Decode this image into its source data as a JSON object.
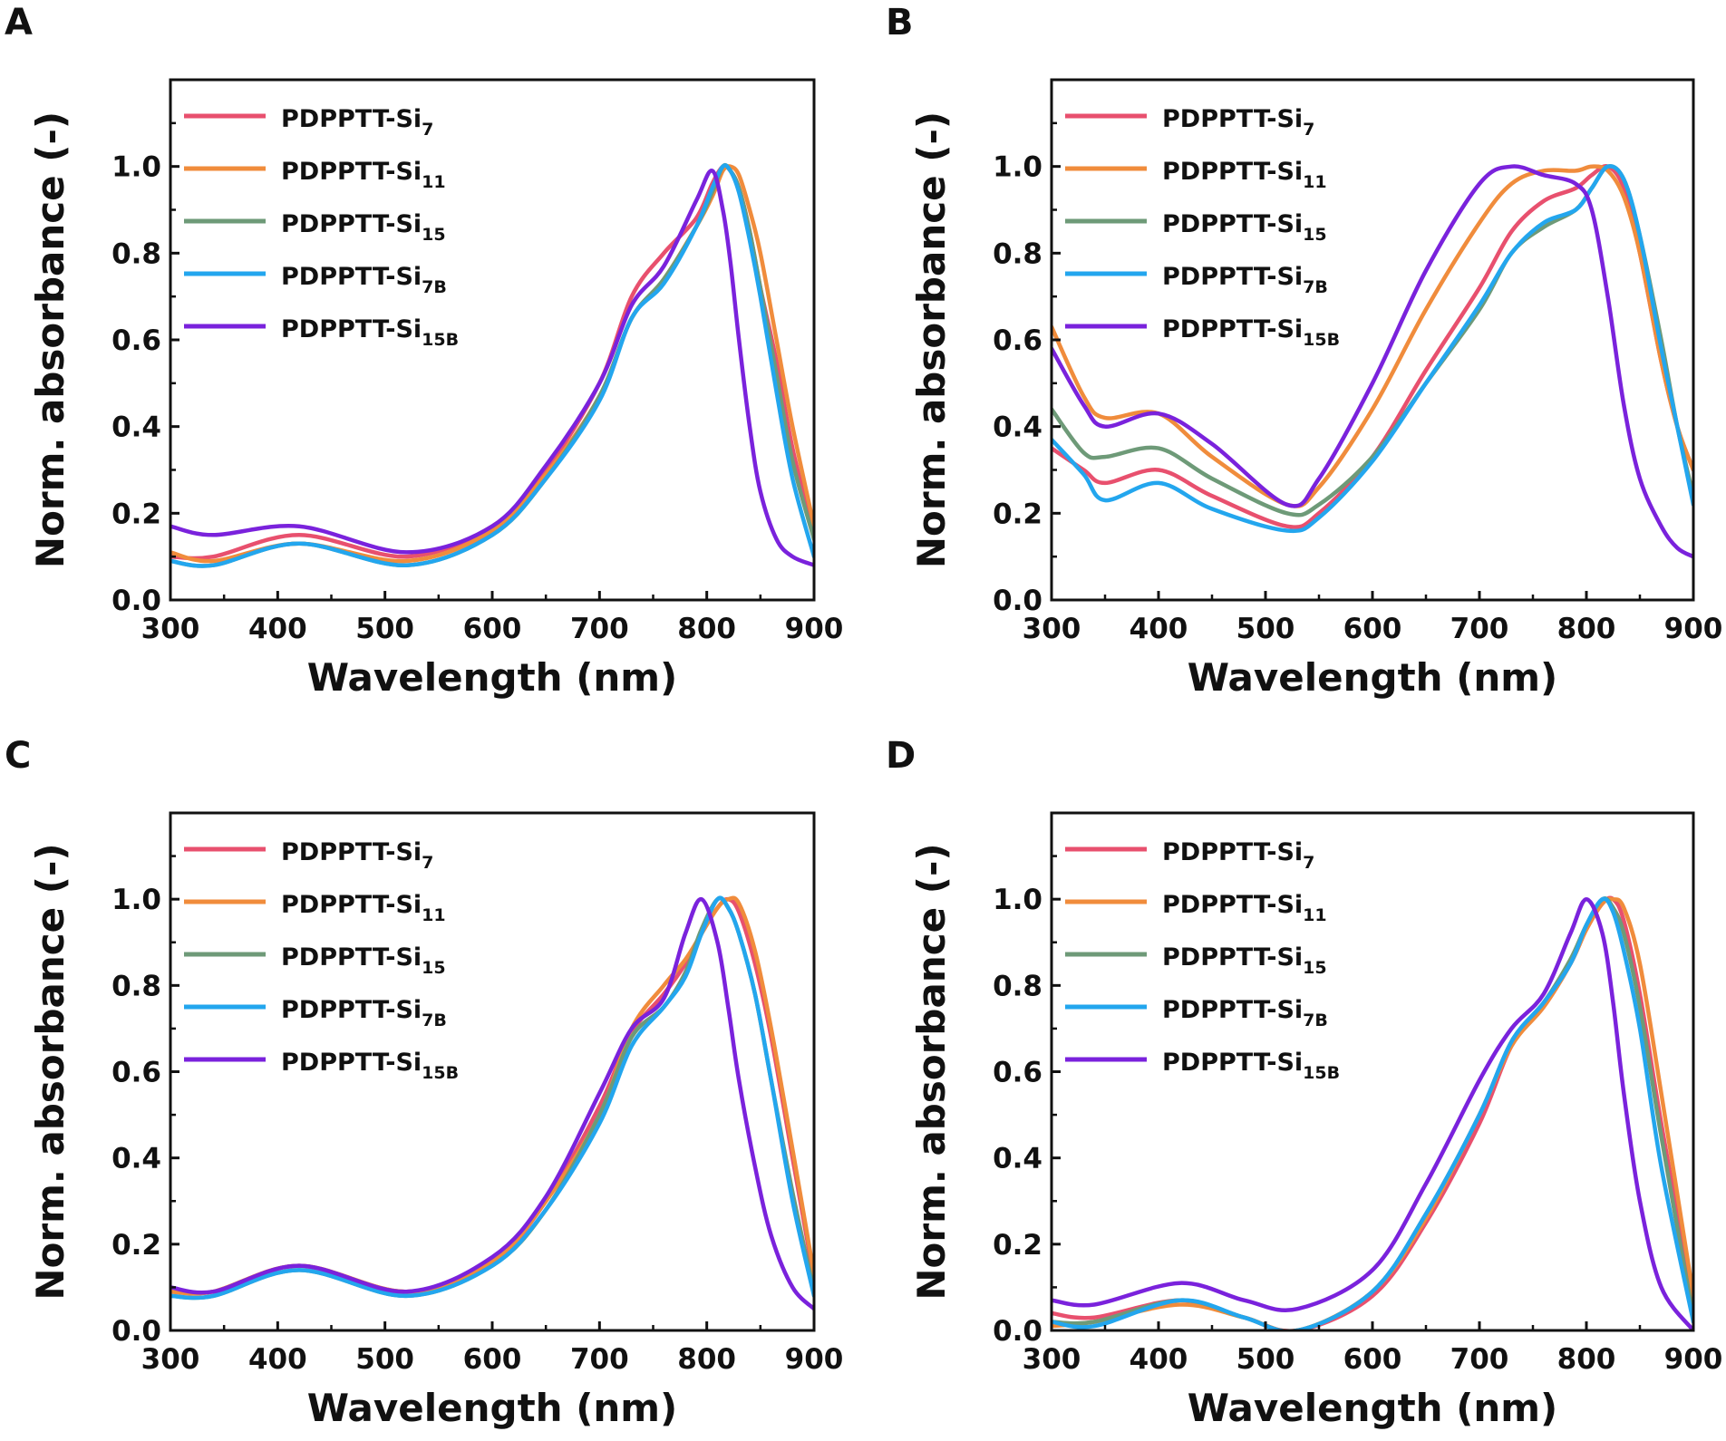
{
  "colors": {
    "Si7": "#e8506e",
    "Si11": "#f08c3c",
    "Si15": "#6e9a78",
    "Si7B": "#23a6ee",
    "Si15B": "#7a22dc"
  },
  "legend": [
    {
      "key": "Si7",
      "prefix": "PDPPTT-Si",
      "sub": "7"
    },
    {
      "key": "Si11",
      "prefix": "PDPPTT-Si",
      "sub": "11"
    },
    {
      "key": "Si15",
      "prefix": "PDPPTT-Si",
      "sub": "15"
    },
    {
      "key": "Si7B",
      "prefix": "PDPPTT-Si",
      "sub": "7B"
    },
    {
      "key": "Si15B",
      "prefix": "PDPPTT-Si",
      "sub": "15B"
    }
  ],
  "chart_data": [
    {
      "panel": "A",
      "type": "line",
      "xlabel": "Wavelength (nm)",
      "ylabel": "Norm. absorbance (-)",
      "xlim": [
        300,
        900
      ],
      "ylim": [
        0,
        1.2
      ],
      "xticks": [
        "300",
        "400",
        "500",
        "600",
        "700",
        "800",
        "900"
      ],
      "yticks": [
        "0.0",
        "0.2",
        "0.4",
        "0.6",
        "0.8",
        "1.0"
      ],
      "legend_position": "top-left",
      "x": [
        300,
        340,
        420,
        520,
        600,
        650,
        700,
        730,
        760,
        790,
        805,
        815,
        822,
        830,
        840,
        850,
        865,
        880,
        900
      ],
      "series": [
        {
          "key": "Si7",
          "name": "PDPPTT-Si7",
          "values": [
            0.1,
            0.1,
            0.15,
            0.1,
            0.17,
            0.3,
            0.5,
            0.7,
            0.8,
            0.88,
            0.96,
            1.0,
            0.99,
            0.95,
            0.85,
            0.72,
            0.55,
            0.35,
            0.15
          ]
        },
        {
          "key": "Si11",
          "name": "PDPPTT-Si11",
          "values": [
            0.11,
            0.09,
            0.13,
            0.09,
            0.16,
            0.29,
            0.47,
            0.65,
            0.74,
            0.86,
            0.93,
            0.99,
            1.0,
            0.98,
            0.9,
            0.8,
            0.6,
            0.4,
            0.17
          ]
        },
        {
          "key": "Si15",
          "name": "PDPPTT-Si15",
          "values": [
            0.09,
            0.08,
            0.13,
            0.08,
            0.15,
            0.28,
            0.47,
            0.65,
            0.74,
            0.86,
            0.94,
            1.0,
            0.99,
            0.95,
            0.85,
            0.72,
            0.52,
            0.32,
            0.14
          ]
        },
        {
          "key": "Si7B",
          "name": "PDPPTT-Si7B",
          "values": [
            0.09,
            0.08,
            0.13,
            0.08,
            0.15,
            0.28,
            0.46,
            0.65,
            0.73,
            0.86,
            0.95,
            1.0,
            0.99,
            0.94,
            0.83,
            0.7,
            0.48,
            0.28,
            0.1
          ]
        },
        {
          "key": "Si15B",
          "name": "PDPPTT-Si15B",
          "values": [
            0.17,
            0.15,
            0.17,
            0.11,
            0.17,
            0.31,
            0.5,
            0.68,
            0.77,
            0.92,
            0.99,
            0.9,
            0.78,
            0.6,
            0.4,
            0.25,
            0.14,
            0.1,
            0.08
          ]
        }
      ]
    },
    {
      "panel": "B",
      "type": "line",
      "xlabel": "Wavelength (nm)",
      "ylabel": "Norm. absorbance (-)",
      "xlim": [
        300,
        900
      ],
      "ylim": [
        0,
        1.2
      ],
      "xticks": [
        "300",
        "400",
        "500",
        "600",
        "700",
        "800",
        "900"
      ],
      "yticks": [
        "0.0",
        "0.2",
        "0.4",
        "0.6",
        "0.8",
        "1.0"
      ],
      "legend_position": "top-left",
      "x": [
        300,
        330,
        350,
        400,
        450,
        520,
        550,
        600,
        650,
        700,
        730,
        760,
        790,
        805,
        820,
        835,
        850,
        870,
        885,
        900
      ],
      "series": [
        {
          "key": "Si7",
          "name": "PDPPTT-Si7",
          "values": [
            0.35,
            0.3,
            0.27,
            0.3,
            0.24,
            0.17,
            0.2,
            0.33,
            0.53,
            0.72,
            0.85,
            0.92,
            0.95,
            0.98,
            1.0,
            0.95,
            0.8,
            0.55,
            0.4,
            0.3
          ]
        },
        {
          "key": "Si11",
          "name": "PDPPTT-Si11",
          "values": [
            0.63,
            0.47,
            0.42,
            0.43,
            0.33,
            0.22,
            0.26,
            0.44,
            0.67,
            0.87,
            0.96,
            0.99,
            0.99,
            1.0,
            0.99,
            0.93,
            0.8,
            0.55,
            0.4,
            0.3
          ]
        },
        {
          "key": "Si15",
          "name": "PDPPTT-Si15",
          "values": [
            0.44,
            0.34,
            0.33,
            0.35,
            0.28,
            0.2,
            0.22,
            0.33,
            0.5,
            0.67,
            0.8,
            0.86,
            0.9,
            0.95,
            1.0,
            0.97,
            0.84,
            0.6,
            0.4,
            0.24
          ]
        },
        {
          "key": "Si7B",
          "name": "PDPPTT-Si7B",
          "values": [
            0.37,
            0.29,
            0.23,
            0.27,
            0.21,
            0.16,
            0.19,
            0.32,
            0.5,
            0.68,
            0.8,
            0.87,
            0.9,
            0.95,
            1.0,
            0.97,
            0.84,
            0.58,
            0.4,
            0.22
          ]
        },
        {
          "key": "Si15B",
          "name": "PDPPTT-Si15B",
          "values": [
            0.58,
            0.45,
            0.4,
            0.43,
            0.36,
            0.22,
            0.28,
            0.5,
            0.76,
            0.96,
            1.0,
            0.98,
            0.96,
            0.9,
            0.7,
            0.45,
            0.28,
            0.17,
            0.12,
            0.1
          ]
        }
      ]
    },
    {
      "panel": "C",
      "type": "line",
      "xlabel": "Wavelength (nm)",
      "ylabel": "Norm. absorbance (-)",
      "xlim": [
        300,
        900
      ],
      "ylim": [
        0,
        1.2
      ],
      "xticks": [
        "300",
        "400",
        "500",
        "600",
        "700",
        "800",
        "900"
      ],
      "yticks": [
        "0.0",
        "0.2",
        "0.4",
        "0.6",
        "0.8",
        "1.0"
      ],
      "legend_position": "top-left",
      "x": [
        300,
        340,
        420,
        520,
        600,
        650,
        700,
        730,
        760,
        780,
        795,
        810,
        820,
        830,
        845,
        860,
        880,
        900
      ],
      "series": [
        {
          "key": "Si7",
          "name": "PDPPTT-Si7",
          "values": [
            0.09,
            0.09,
            0.15,
            0.09,
            0.16,
            0.3,
            0.52,
            0.69,
            0.78,
            0.85,
            0.92,
            0.98,
            1.0,
            0.97,
            0.85,
            0.68,
            0.4,
            0.12
          ]
        },
        {
          "key": "Si11",
          "name": "PDPPTT-Si11",
          "values": [
            0.09,
            0.09,
            0.15,
            0.09,
            0.16,
            0.3,
            0.5,
            0.7,
            0.8,
            0.86,
            0.92,
            0.98,
            1.0,
            0.99,
            0.88,
            0.7,
            0.42,
            0.13
          ]
        },
        {
          "key": "Si15",
          "name": "PDPPTT-Si15",
          "values": [
            0.08,
            0.08,
            0.14,
            0.08,
            0.15,
            0.28,
            0.5,
            0.68,
            0.75,
            0.83,
            0.93,
            1.0,
            0.98,
            0.92,
            0.78,
            0.58,
            0.32,
            0.09
          ]
        },
        {
          "key": "Si7B",
          "name": "PDPPTT-Si7B",
          "values": [
            0.08,
            0.08,
            0.14,
            0.08,
            0.15,
            0.28,
            0.48,
            0.66,
            0.75,
            0.82,
            0.92,
            1.0,
            0.98,
            0.92,
            0.78,
            0.58,
            0.3,
            0.08
          ]
        },
        {
          "key": "Si15B",
          "name": "PDPPTT-Si15B",
          "values": [
            0.1,
            0.09,
            0.15,
            0.09,
            0.17,
            0.31,
            0.55,
            0.7,
            0.77,
            0.92,
            1.0,
            0.9,
            0.75,
            0.58,
            0.38,
            0.22,
            0.1,
            0.05
          ]
        }
      ]
    },
    {
      "panel": "D",
      "type": "line",
      "xlabel": "Wavelength (nm)",
      "ylabel": "Norm. absorbance (-)",
      "xlim": [
        300,
        900
      ],
      "ylim": [
        0,
        1.2
      ],
      "xticks": [
        "300",
        "400",
        "500",
        "600",
        "700",
        "800",
        "900"
      ],
      "yticks": [
        "0.0",
        "0.2",
        "0.4",
        "0.6",
        "0.8",
        "1.0"
      ],
      "legend_position": "top-left",
      "x": [
        300,
        340,
        420,
        480,
        530,
        600,
        650,
        700,
        730,
        760,
        785,
        800,
        815,
        825,
        835,
        850,
        870,
        900
      ],
      "series": [
        {
          "key": "Si7",
          "name": "PDPPTT-Si7",
          "values": [
            0.04,
            0.03,
            0.07,
            0.03,
            0.0,
            0.08,
            0.25,
            0.48,
            0.66,
            0.75,
            0.85,
            0.93,
            0.99,
            1.0,
            0.95,
            0.78,
            0.48,
            0.06
          ]
        },
        {
          "key": "Si11",
          "name": "PDPPTT-Si11",
          "values": [
            0.01,
            0.02,
            0.06,
            0.03,
            0.0,
            0.09,
            0.26,
            0.5,
            0.66,
            0.75,
            0.85,
            0.93,
            0.99,
            1.0,
            0.98,
            0.85,
            0.55,
            0.08
          ]
        },
        {
          "key": "Si15",
          "name": "PDPPTT-Si15",
          "values": [
            0.02,
            0.02,
            0.07,
            0.03,
            0.0,
            0.09,
            0.27,
            0.5,
            0.67,
            0.76,
            0.86,
            0.94,
            1.0,
            0.98,
            0.92,
            0.75,
            0.45,
            0.03
          ]
        },
        {
          "key": "Si7B",
          "name": "PDPPTT-Si7B",
          "values": [
            0.02,
            0.01,
            0.07,
            0.03,
            0.0,
            0.09,
            0.27,
            0.5,
            0.67,
            0.76,
            0.85,
            0.94,
            1.0,
            0.97,
            0.88,
            0.7,
            0.38,
            0.02
          ]
        },
        {
          "key": "Si15B",
          "name": "PDPPTT-Si15B",
          "values": [
            0.07,
            0.06,
            0.11,
            0.07,
            0.05,
            0.14,
            0.34,
            0.58,
            0.7,
            0.78,
            0.92,
            1.0,
            0.92,
            0.76,
            0.55,
            0.3,
            0.1,
            0.0
          ]
        }
      ]
    }
  ]
}
